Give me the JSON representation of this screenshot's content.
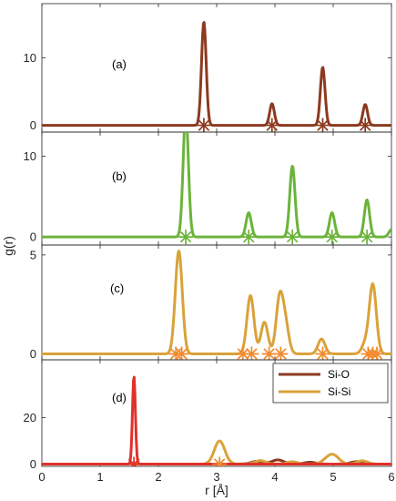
{
  "figure": {
    "xlabel": "r [Å]",
    "ylabel": "g(r)"
  },
  "colors": {
    "si_o_brown": "#8B3A1F",
    "green": "#6BB43A",
    "si_si_tan": "#D9A23A",
    "red": "#E0312A",
    "orange": "#F28A2E",
    "axis": "#262626"
  },
  "legend": {
    "items": [
      {
        "label": "Si-O",
        "color": "#8B3A1F"
      },
      {
        "label": "Si-Si",
        "color": "#D9A23A"
      }
    ]
  },
  "chart_data": [
    {
      "type": "line",
      "panel_label": "(a)",
      "xlim": [
        0,
        6
      ],
      "ylim": [
        -1,
        18
      ],
      "yticks": [
        0,
        10
      ],
      "color": "#8B3A1F",
      "marker_color": "#8B3A1F",
      "sigma": 0.04,
      "peaks": [
        {
          "x": 2.78,
          "y": 15.3
        },
        {
          "x": 3.95,
          "y": 3.2
        },
        {
          "x": 4.82,
          "y": 8.6
        },
        {
          "x": 5.55,
          "y": 3.1
        }
      ],
      "markers": [
        2.78,
        3.95,
        4.82,
        5.55
      ]
    },
    {
      "type": "line",
      "panel_label": "(b)",
      "xlim": [
        0,
        6
      ],
      "ylim": [
        -1,
        13
      ],
      "yticks": [
        0,
        10
      ],
      "color": "#6BB43A",
      "marker_color": "#6BB43A",
      "sigma": 0.045,
      "peaks": [
        {
          "x": 2.47,
          "y": 15.5
        },
        {
          "x": 3.55,
          "y": 3.0
        },
        {
          "x": 4.3,
          "y": 8.8
        },
        {
          "x": 4.98,
          "y": 3.0
        },
        {
          "x": 5.58,
          "y": 4.6
        },
        {
          "x": 6.0,
          "y": 0.9
        }
      ],
      "markers": [
        2.47,
        3.55,
        4.3,
        4.98,
        5.58
      ]
    },
    {
      "type": "line",
      "panel_label": "(c)",
      "xlim": [
        0,
        6
      ],
      "ylim": [
        -0.3,
        5.5
      ],
      "yticks": [
        0,
        5
      ],
      "color": "#D9A23A",
      "marker_color": "#F28A2E",
      "sigma": 0.06,
      "peaks": [
        {
          "x": 2.35,
          "y": 5.2
        },
        {
          "x": 3.58,
          "y": 2.95
        },
        {
          "x": 3.82,
          "y": 1.6
        },
        {
          "x": 4.08,
          "y": 2.75
        },
        {
          "x": 4.18,
          "y": 1.4
        },
        {
          "x": 4.8,
          "y": 0.75
        },
        {
          "x": 5.68,
          "y": 3.5
        },
        {
          "x": 5.55,
          "y": 0.5
        }
      ],
      "markers": [
        2.3,
        2.4,
        3.45,
        3.6,
        3.9,
        4.1,
        4.82,
        5.6,
        5.68,
        5.75
      ]
    },
    {
      "type": "line",
      "panel_label": "(d)",
      "xlim": [
        0,
        6
      ],
      "ylim": [
        -1,
        45
      ],
      "yticks": [
        0,
        20
      ],
      "legend": "top-right",
      "series": [
        {
          "name": "Si-O",
          "color": "#8B3A1F",
          "sigma": 0.1,
          "peaks": [
            {
              "x": 3.7,
              "y": 1.2
            },
            {
              "x": 4.05,
              "y": 1.8
            },
            {
              "x": 4.6,
              "y": 0.8
            },
            {
              "x": 5.4,
              "y": 1.0
            }
          ]
        },
        {
          "name": "Si-Si",
          "color": "#D9A23A",
          "sigma": 0.09,
          "peaks": [
            {
              "x": 3.05,
              "y": 10.0
            },
            {
              "x": 3.75,
              "y": 1.5
            },
            {
              "x": 4.3,
              "y": 1.0
            },
            {
              "x": 4.9,
              "y": 2.0
            },
            {
              "x": 5.02,
              "y": 3.2
            },
            {
              "x": 5.5,
              "y": 1.4
            }
          ]
        },
        {
          "color": "#E0312A",
          "sigma": 0.025,
          "peaks": [
            {
              "x": 1.58,
              "y": 38
            }
          ]
        }
      ],
      "markers": [
        {
          "x": 1.58,
          "color": "#E0312A"
        },
        {
          "x": 3.05,
          "color": "#F28A2E"
        }
      ]
    }
  ],
  "xaxis": {
    "ticks": [
      0,
      1,
      2,
      3,
      4,
      5,
      6
    ],
    "tick_labels": [
      "0",
      "1",
      "2",
      "3",
      "4",
      "5",
      "6"
    ]
  }
}
